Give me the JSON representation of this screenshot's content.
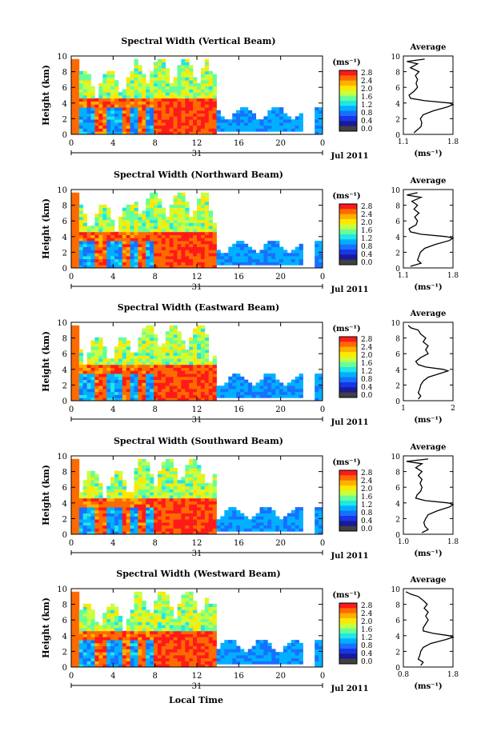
{
  "colorbar": {
    "unit": "(ms⁻¹)",
    "ticks": [
      "2.8",
      "2.4",
      "2.0",
      "1.6",
      "1.2",
      "0.8",
      "0.4",
      "0.0"
    ],
    "colors": [
      "#ff1a1a",
      "#ff6a00",
      "#ffb000",
      "#ffe800",
      "#c8ff40",
      "#66ff99",
      "#22e6e6",
      "#00b0ff",
      "#1870ff",
      "#1836e6",
      "#1a1a9a",
      "#404040"
    ]
  },
  "xaxis": {
    "ticks": [
      "0",
      "4",
      "8",
      "12",
      "16",
      "20",
      "0"
    ],
    "date_day": "31",
    "date_label": "Jul 2011",
    "label": "Local Time"
  },
  "yaxis": {
    "label": "Height (km)",
    "ticks": [
      "0",
      "2",
      "4",
      "6",
      "8",
      "10"
    ]
  },
  "average_title": "Average",
  "average_unit": "(ms⁻¹)",
  "chart_data": [
    {
      "type": "heatmap",
      "title": "Spectral Width (Vertical Beam)",
      "x_range_hours": [
        0,
        24
      ],
      "y_range_km": [
        0,
        10
      ],
      "color_range": [
        0.0,
        2.8
      ],
      "ylabel": "Height (km)",
      "xlabel": "Local Time",
      "profile": {
        "title": "Average",
        "xlim": [
          1.1,
          1.8
        ],
        "xticks": [
          "1.1",
          "1.8"
        ],
        "height_km": [
          0.2,
          0.6,
          1.0,
          1.5,
          2.0,
          2.5,
          3.0,
          3.5,
          3.8,
          4.0,
          4.3,
          4.6,
          5.0,
          5.5,
          6.0,
          6.5,
          7.0,
          7.5,
          8.0,
          8.5,
          9.0,
          9.3,
          9.6
        ],
        "value": [
          1.25,
          1.3,
          1.35,
          1.36,
          1.34,
          1.38,
          1.52,
          1.72,
          1.8,
          1.75,
          1.4,
          1.2,
          1.18,
          1.25,
          1.3,
          1.28,
          1.3,
          1.27,
          1.32,
          1.2,
          1.3,
          1.15,
          1.4
        ]
      }
    },
    {
      "type": "heatmap",
      "title": "Spectral Width (Northward Beam)",
      "x_range_hours": [
        0,
        24
      ],
      "y_range_km": [
        0,
        10
      ],
      "color_range": [
        0.0,
        2.8
      ],
      "ylabel": "Height (km)",
      "xlabel": "Local Time",
      "profile": {
        "title": "Average",
        "xlim": [
          1.1,
          1.8
        ],
        "xticks": [
          "1.1",
          "1.8"
        ],
        "height_km": [
          0.2,
          0.6,
          1.0,
          1.5,
          2.0,
          2.5,
          3.0,
          3.5,
          3.8,
          4.0,
          4.3,
          4.6,
          5.0,
          5.5,
          6.0,
          6.5,
          7.0,
          7.5,
          8.0,
          8.5,
          9.0,
          9.3,
          9.6
        ],
        "value": [
          1.2,
          1.35,
          1.3,
          1.32,
          1.34,
          1.4,
          1.55,
          1.75,
          1.8,
          1.7,
          1.35,
          1.2,
          1.18,
          1.28,
          1.3,
          1.26,
          1.32,
          1.25,
          1.3,
          1.22,
          1.35,
          1.15,
          1.3
        ]
      }
    },
    {
      "type": "heatmap",
      "title": "Spectral Width (Eastward Beam)",
      "x_range_hours": [
        0,
        24
      ],
      "y_range_km": [
        0,
        10
      ],
      "color_range": [
        0.0,
        2.8
      ],
      "ylabel": "Height (km)",
      "xlabel": "Local Time",
      "profile": {
        "title": "Average",
        "xlim": [
          1,
          2
        ],
        "xticks": [
          "1",
          "2"
        ],
        "height_km": [
          0.2,
          0.6,
          1.0,
          1.5,
          2.0,
          2.5,
          3.0,
          3.5,
          3.8,
          4.0,
          4.3,
          4.6,
          5.0,
          5.5,
          6.0,
          6.5,
          7.0,
          7.5,
          8.0,
          8.5,
          9.0,
          9.3,
          9.6
        ],
        "value": [
          1.3,
          1.35,
          1.3,
          1.33,
          1.35,
          1.4,
          1.5,
          1.75,
          1.9,
          1.8,
          1.45,
          1.3,
          1.25,
          1.35,
          1.5,
          1.45,
          1.5,
          1.4,
          1.45,
          1.35,
          1.3,
          1.15,
          1.1
        ]
      }
    },
    {
      "type": "heatmap",
      "title": "Spectral Width (Southward Beam)",
      "x_range_hours": [
        0,
        24
      ],
      "y_range_km": [
        0,
        10
      ],
      "color_range": [
        0.0,
        2.8
      ],
      "ylabel": "Height (km)",
      "xlabel": "Local Time",
      "profile": {
        "title": "Average",
        "xlim": [
          1.0,
          1.8
        ],
        "xticks": [
          "1.0",
          "1.8"
        ],
        "height_km": [
          0.2,
          0.6,
          1.0,
          1.5,
          2.0,
          2.5,
          3.0,
          3.5,
          3.8,
          4.0,
          4.3,
          4.6,
          5.0,
          5.5,
          6.0,
          6.5,
          7.0,
          7.5,
          8.0,
          8.5,
          9.0,
          9.3,
          9.6
        ],
        "value": [
          1.3,
          1.4,
          1.35,
          1.33,
          1.36,
          1.4,
          1.55,
          1.75,
          1.8,
          1.72,
          1.35,
          1.2,
          1.22,
          1.28,
          1.3,
          1.27,
          1.3,
          1.24,
          1.3,
          1.2,
          1.3,
          1.05,
          1.4
        ]
      }
    },
    {
      "type": "heatmap",
      "title": "Spectral Width (Westward Beam)",
      "x_range_hours": [
        0,
        24
      ],
      "y_range_km": [
        0,
        10
      ],
      "color_range": [
        0.0,
        2.8
      ],
      "ylabel": "Height (km)",
      "xlabel": "Local Time",
      "profile": {
        "title": "Average",
        "xlim": [
          0.8,
          1.8
        ],
        "xticks": [
          "0.8",
          "1.8"
        ],
        "height_km": [
          0.2,
          0.6,
          1.0,
          1.5,
          2.0,
          2.5,
          3.0,
          3.5,
          3.8,
          4.0,
          4.3,
          4.6,
          5.0,
          5.5,
          6.0,
          6.5,
          7.0,
          7.5,
          8.0,
          8.5,
          9.0,
          9.3,
          9.6
        ],
        "value": [
          1.15,
          1.2,
          1.1,
          1.13,
          1.15,
          1.2,
          1.35,
          1.65,
          1.8,
          1.72,
          1.4,
          1.2,
          1.2,
          1.25,
          1.3,
          1.25,
          1.3,
          1.22,
          1.28,
          1.2,
          1.1,
          0.95,
          0.85
        ]
      }
    }
  ]
}
